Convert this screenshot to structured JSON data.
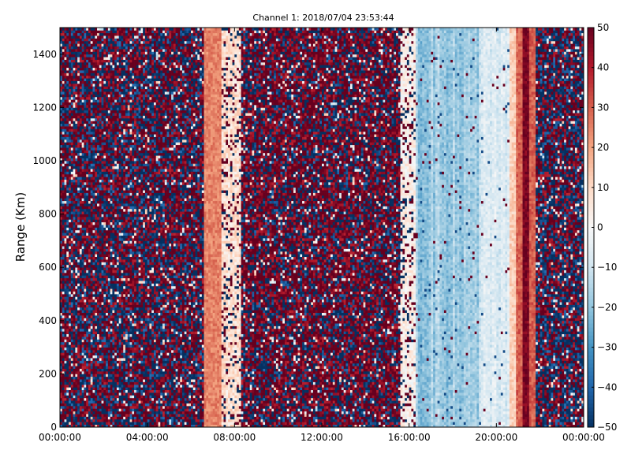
{
  "chart_data": {
    "type": "heatmap",
    "title": "Channel 1: 2018/07/04 23:53:44",
    "xlabel": "",
    "ylabel": "Range (Km)",
    "x_range": [
      "00:00:00",
      "24:00:00"
    ],
    "xticks": [
      "00:00:00",
      "04:00:00",
      "08:00:00",
      "12:00:00",
      "16:00:00",
      "20:00:00",
      "00:00:00"
    ],
    "xtick_hours": [
      0,
      4,
      8,
      12,
      16,
      20,
      24
    ],
    "ylim": [
      0,
      1500
    ],
    "yticks": [
      0,
      200,
      400,
      600,
      800,
      1000,
      1200,
      1400
    ],
    "colorbar": {
      "cmap": "RdBu_r",
      "vmin": -50,
      "vmax": 50,
      "ticks": [
        -50,
        -40,
        -30,
        -20,
        -10,
        0,
        10,
        20,
        30,
        40,
        50
      ]
    },
    "grid": false,
    "time_segments_hours": [
      {
        "start": 0.0,
        "end": 6.6,
        "pattern": "noisy",
        "p_high": 0.55,
        "note": "alternating saturated red/blue"
      },
      {
        "start": 6.6,
        "end": 7.4,
        "pattern": "band",
        "value": 25
      },
      {
        "start": 7.4,
        "end": 8.3,
        "pattern": "mixed",
        "value": 8
      },
      {
        "start": 8.3,
        "end": 15.6,
        "pattern": "noisy",
        "p_high": 0.65
      },
      {
        "start": 15.6,
        "end": 16.3,
        "pattern": "mixed",
        "value": 3
      },
      {
        "start": 16.3,
        "end": 19.2,
        "pattern": "smooth",
        "value": -18
      },
      {
        "start": 19.2,
        "end": 20.6,
        "pattern": "smooth",
        "value": -8
      },
      {
        "start": 20.6,
        "end": 20.9,
        "pattern": "band",
        "value": 12
      },
      {
        "start": 20.9,
        "end": 21.2,
        "pattern": "band",
        "value": 30
      },
      {
        "start": 21.2,
        "end": 21.5,
        "pattern": "band",
        "value": 48
      },
      {
        "start": 21.5,
        "end": 21.8,
        "pattern": "band",
        "value": 30
      },
      {
        "start": 21.8,
        "end": 24.0,
        "pattern": "noisy",
        "p_high": 0.5
      }
    ]
  }
}
